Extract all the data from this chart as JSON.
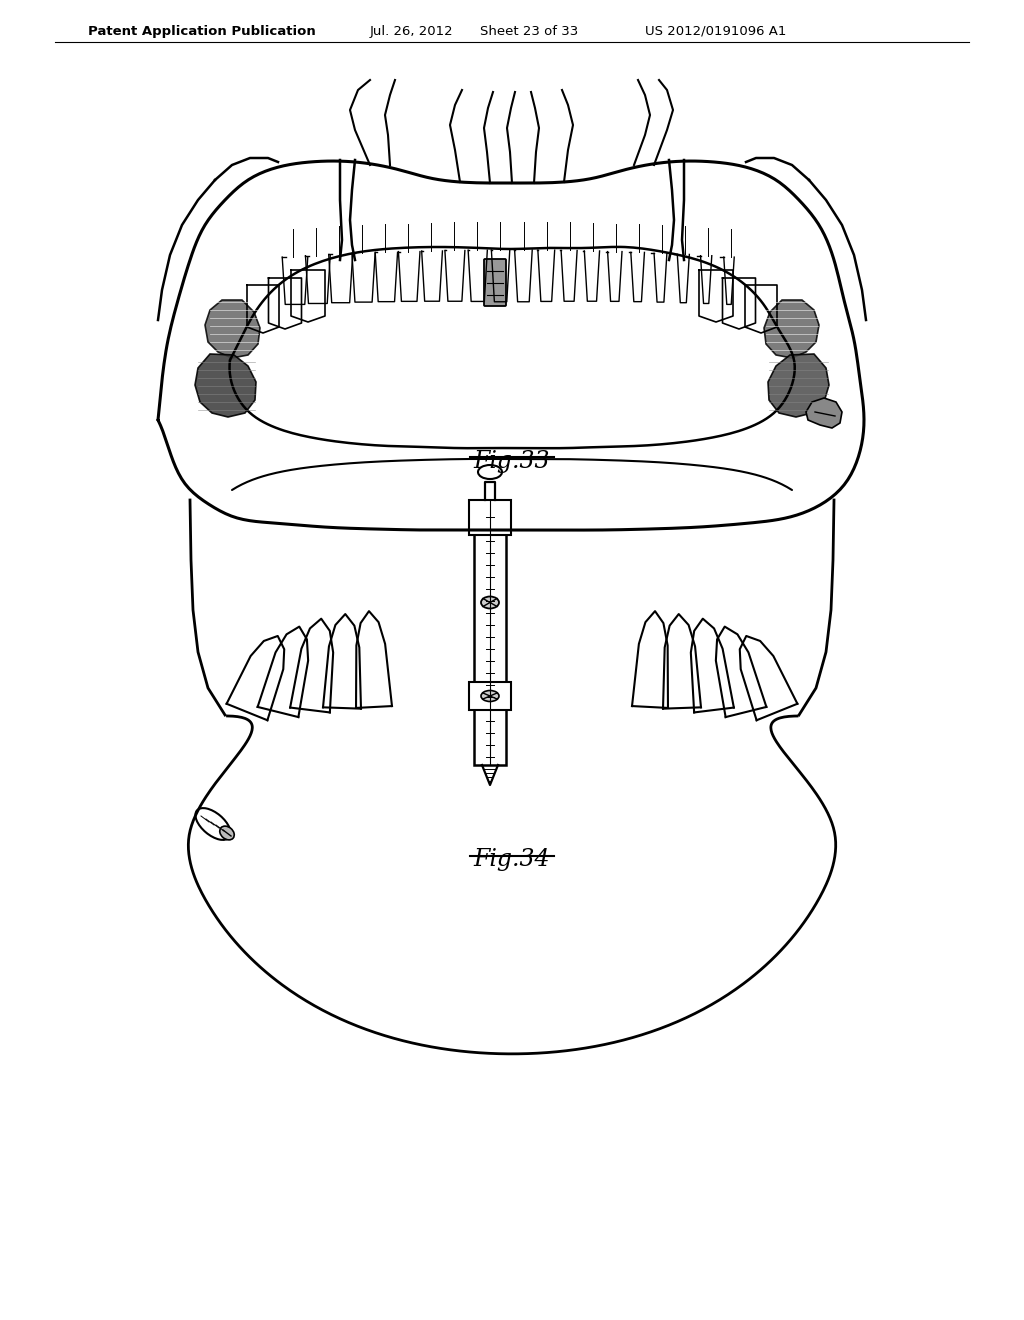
{
  "background_color": "#ffffff",
  "header_text": "Patent Application Publication",
  "header_date": "Jul. 26, 2012",
  "header_sheet": "Sheet 23 of 33",
  "header_patent": "US 2012/0191096 A1",
  "fig33_label": "Fig.33",
  "fig34_label": "Fig.34",
  "line_color": "#000000",
  "shade_color": "#777777",
  "shade_dark": "#444444",
  "shade_light": "#aaaaaa"
}
